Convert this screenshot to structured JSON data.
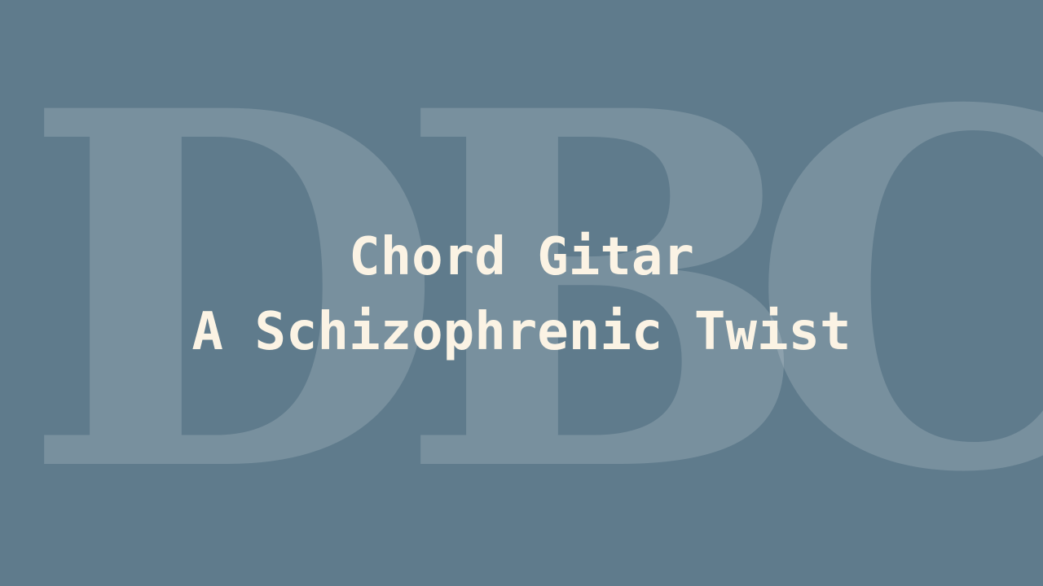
{
  "watermark": {
    "letters": [
      "D",
      "B",
      "C"
    ]
  },
  "title": {
    "line1": "Chord Gitar",
    "line2": "A Schizophrenic Twist"
  },
  "colors": {
    "background": "#5f7b8c",
    "text": "#fbf3e4",
    "watermark": "rgba(255,255,255,0.16)"
  }
}
